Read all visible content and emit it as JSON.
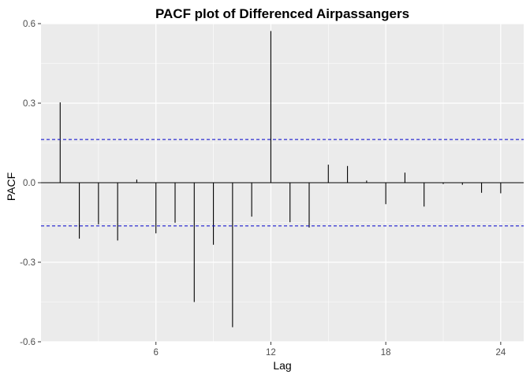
{
  "chart_data": {
    "type": "bar",
    "title": "PACF plot of Differenced Airpassangers",
    "xlabel": "Lag",
    "ylabel": "PACF",
    "xlim": [
      0,
      25.2
    ],
    "ylim": [
      -0.6,
      0.6
    ],
    "xticks": [
      6,
      12,
      18,
      24
    ],
    "xtick_labels": [
      "6",
      "12",
      "18",
      "24"
    ],
    "yticks": [
      -0.6,
      -0.3,
      0.0,
      0.3,
      0.6
    ],
    "ytick_labels": [
      "-0.6",
      "-0.3",
      "0.0",
      "0.3",
      "0.6"
    ],
    "lags": [
      1,
      2,
      3,
      4,
      5,
      6,
      7,
      8,
      9,
      10,
      11,
      12,
      13,
      14,
      15,
      16,
      17,
      18,
      19,
      20,
      21,
      22,
      23,
      24
    ],
    "values": [
      0.303,
      -0.211,
      -0.157,
      -0.218,
      0.012,
      -0.191,
      -0.151,
      -0.45,
      -0.234,
      -0.545,
      -0.128,
      0.572,
      -0.149,
      -0.169,
      0.068,
      0.063,
      0.008,
      -0.081,
      0.038,
      -0.09,
      -0.005,
      -0.008,
      -0.038,
      -0.04
    ],
    "confidence_bound": 0.163,
    "grid": true,
    "colors": {
      "panel": "#ebebeb",
      "grid": "#ffffff",
      "bars": "#000000",
      "zero_line": "#000000",
      "ci_line": "#0000cc"
    }
  }
}
